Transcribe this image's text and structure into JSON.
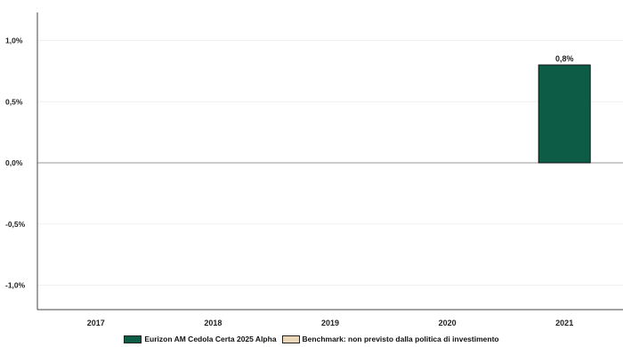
{
  "chart_data": {
    "type": "bar",
    "categories": [
      "2017",
      "2018",
      "2019",
      "2020",
      "2021"
    ],
    "series": [
      {
        "name": "Eurizon AM Cedola Certa 2025 Alpha",
        "values": [
          null,
          null,
          null,
          null,
          0.8
        ],
        "color": "#0d5c46"
      },
      {
        "name": "Benchmark: non previsto dalla politica di investimento",
        "values": [
          null,
          null,
          null,
          null,
          null
        ],
        "color": "#ecd6b8"
      }
    ],
    "data_labels": [
      "",
      "",
      "",
      "",
      "0,8%"
    ],
    "yticks": [
      1.0,
      0.5,
      0.0,
      -0.5,
      -1.0
    ],
    "ytick_labels": [
      "1,0%",
      "0,5%",
      "0,0%",
      "-0,5%",
      "-1,0%"
    ],
    "ylim": [
      -1.2,
      1.2
    ],
    "title": "",
    "xlabel": "",
    "ylabel": "",
    "grid": true,
    "legend_position": "bottom"
  }
}
